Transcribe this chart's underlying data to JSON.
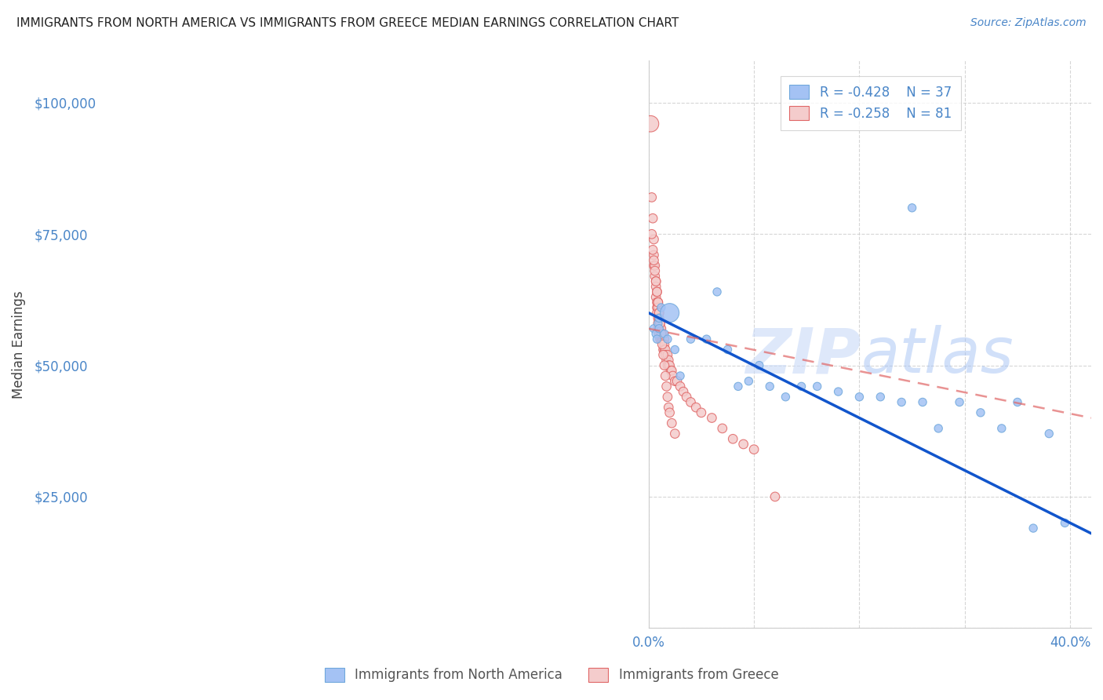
{
  "title": "IMMIGRANTS FROM NORTH AMERICA VS IMMIGRANTS FROM GREECE MEDIAN EARNINGS CORRELATION CHART",
  "source": "Source: ZipAtlas.com",
  "ylabel": "Median Earnings",
  "xlim": [
    0.0,
    0.42
  ],
  "ylim": [
    0,
    108000
  ],
  "watermark_part1": "ZIP",
  "watermark_part2": "atlas",
  "legend_blue_r": "R = -0.428",
  "legend_blue_n": "N = 37",
  "legend_pink_r": "R = -0.258",
  "legend_pink_n": "N = 81",
  "blue_color": "#a4c2f4",
  "blue_edge_color": "#6fa8dc",
  "pink_color": "#f4cccc",
  "pink_edge_color": "#e06666",
  "blue_line_color": "#1155cc",
  "pink_line_color": "#e06666",
  "title_color": "#222222",
  "source_color": "#4a86c8",
  "axis_label_color": "#4a86c8",
  "ytick_color": "#4a86c8",
  "xtick_color": "#4a86c8",
  "ylabel_color": "#444444",
  "blue_scatter_x": [
    0.005,
    0.007,
    0.008,
    0.009,
    0.01,
    0.01,
    0.012,
    0.015,
    0.018,
    0.02,
    0.025,
    0.03,
    0.04,
    0.055,
    0.065,
    0.075,
    0.085,
    0.095,
    0.105,
    0.115,
    0.13,
    0.145,
    0.16,
    0.18,
    0.2,
    0.22,
    0.24,
    0.26,
    0.275,
    0.295,
    0.315,
    0.335,
    0.35,
    0.365,
    0.38,
    0.395,
    0.25
  ],
  "blue_scatter_y": [
    57000,
    56000,
    55000,
    58000,
    57000,
    59000,
    61000,
    56000,
    55000,
    60000,
    53000,
    48000,
    55000,
    55000,
    64000,
    53000,
    46000,
    47000,
    50000,
    46000,
    44000,
    46000,
    46000,
    45000,
    44000,
    44000,
    43000,
    43000,
    38000,
    43000,
    41000,
    38000,
    43000,
    19000,
    37000,
    20000,
    80000
  ],
  "blue_scatter_size": [
    55,
    55,
    55,
    55,
    55,
    55,
    55,
    55,
    55,
    300,
    55,
    55,
    55,
    55,
    55,
    55,
    55,
    55,
    55,
    55,
    55,
    55,
    55,
    55,
    55,
    55,
    55,
    55,
    55,
    55,
    55,
    55,
    55,
    55,
    55,
    55,
    55
  ],
  "pink_scatter_x": [
    0.002,
    0.003,
    0.004,
    0.005,
    0.005,
    0.005,
    0.006,
    0.006,
    0.007,
    0.007,
    0.007,
    0.008,
    0.008,
    0.008,
    0.008,
    0.009,
    0.009,
    0.009,
    0.009,
    0.009,
    0.01,
    0.01,
    0.01,
    0.01,
    0.011,
    0.011,
    0.011,
    0.012,
    0.012,
    0.013,
    0.013,
    0.014,
    0.014,
    0.015,
    0.015,
    0.015,
    0.016,
    0.016,
    0.017,
    0.018,
    0.018,
    0.019,
    0.019,
    0.02,
    0.021,
    0.022,
    0.023,
    0.025,
    0.027,
    0.03,
    0.033,
    0.036,
    0.04,
    0.045,
    0.05,
    0.06,
    0.07,
    0.08,
    0.09,
    0.1,
    0.003,
    0.004,
    0.005,
    0.006,
    0.007,
    0.008,
    0.009,
    0.01,
    0.011,
    0.012,
    0.013,
    0.014,
    0.015,
    0.016,
    0.017,
    0.018,
    0.019,
    0.02,
    0.022,
    0.025,
    0.12
  ],
  "pink_scatter_y": [
    96000,
    82000,
    78000,
    74000,
    71000,
    69000,
    69000,
    67000,
    66000,
    65000,
    63000,
    64000,
    62000,
    61000,
    60000,
    62000,
    61000,
    59000,
    58000,
    57000,
    60000,
    59000,
    57000,
    56000,
    58000,
    57000,
    55000,
    57000,
    55000,
    56000,
    55000,
    55000,
    53000,
    55000,
    54000,
    53000,
    53000,
    52000,
    51000,
    52000,
    50000,
    51000,
    50000,
    50000,
    49000,
    49000,
    48000,
    47000,
    47000,
    46000,
    45000,
    44000,
    43000,
    42000,
    41000,
    40000,
    38000,
    36000,
    35000,
    34000,
    75000,
    72000,
    70000,
    68000,
    66000,
    64000,
    62000,
    60000,
    58000,
    56000,
    54000,
    52000,
    50000,
    48000,
    46000,
    44000,
    42000,
    41000,
    39000,
    37000,
    25000
  ],
  "pink_scatter_size": [
    220,
    70,
    70,
    70,
    70,
    70,
    70,
    70,
    70,
    70,
    70,
    70,
    70,
    70,
    70,
    70,
    70,
    70,
    70,
    70,
    70,
    70,
    70,
    70,
    70,
    70,
    70,
    70,
    70,
    70,
    70,
    70,
    70,
    70,
    70,
    70,
    70,
    70,
    70,
    70,
    70,
    70,
    70,
    70,
    70,
    70,
    70,
    70,
    70,
    70,
    70,
    70,
    70,
    70,
    70,
    70,
    70,
    70,
    70,
    70,
    70,
    70,
    70,
    70,
    70,
    70,
    70,
    70,
    70,
    70,
    70,
    70,
    70,
    70,
    70,
    70,
    70,
    70,
    70,
    70,
    70
  ],
  "blue_line_x0": 0.0,
  "blue_line_x1": 0.42,
  "blue_line_y0": 60000,
  "blue_line_y1": 18000,
  "pink_line_x0": 0.0,
  "pink_line_x1": 0.42,
  "pink_line_y0": 57000,
  "pink_line_y1": 40000,
  "grid_color": "#cccccc",
  "yticks": [
    0,
    25000,
    50000,
    75000,
    100000
  ],
  "ytick_labels": [
    "",
    "$25,000",
    "$50,000",
    "$75,000",
    "$100,000"
  ],
  "xticks": [
    0.0,
    0.1,
    0.2,
    0.3,
    0.4
  ],
  "xtick_labels": [
    "0.0%",
    "",
    "",
    "",
    "40.0%"
  ]
}
